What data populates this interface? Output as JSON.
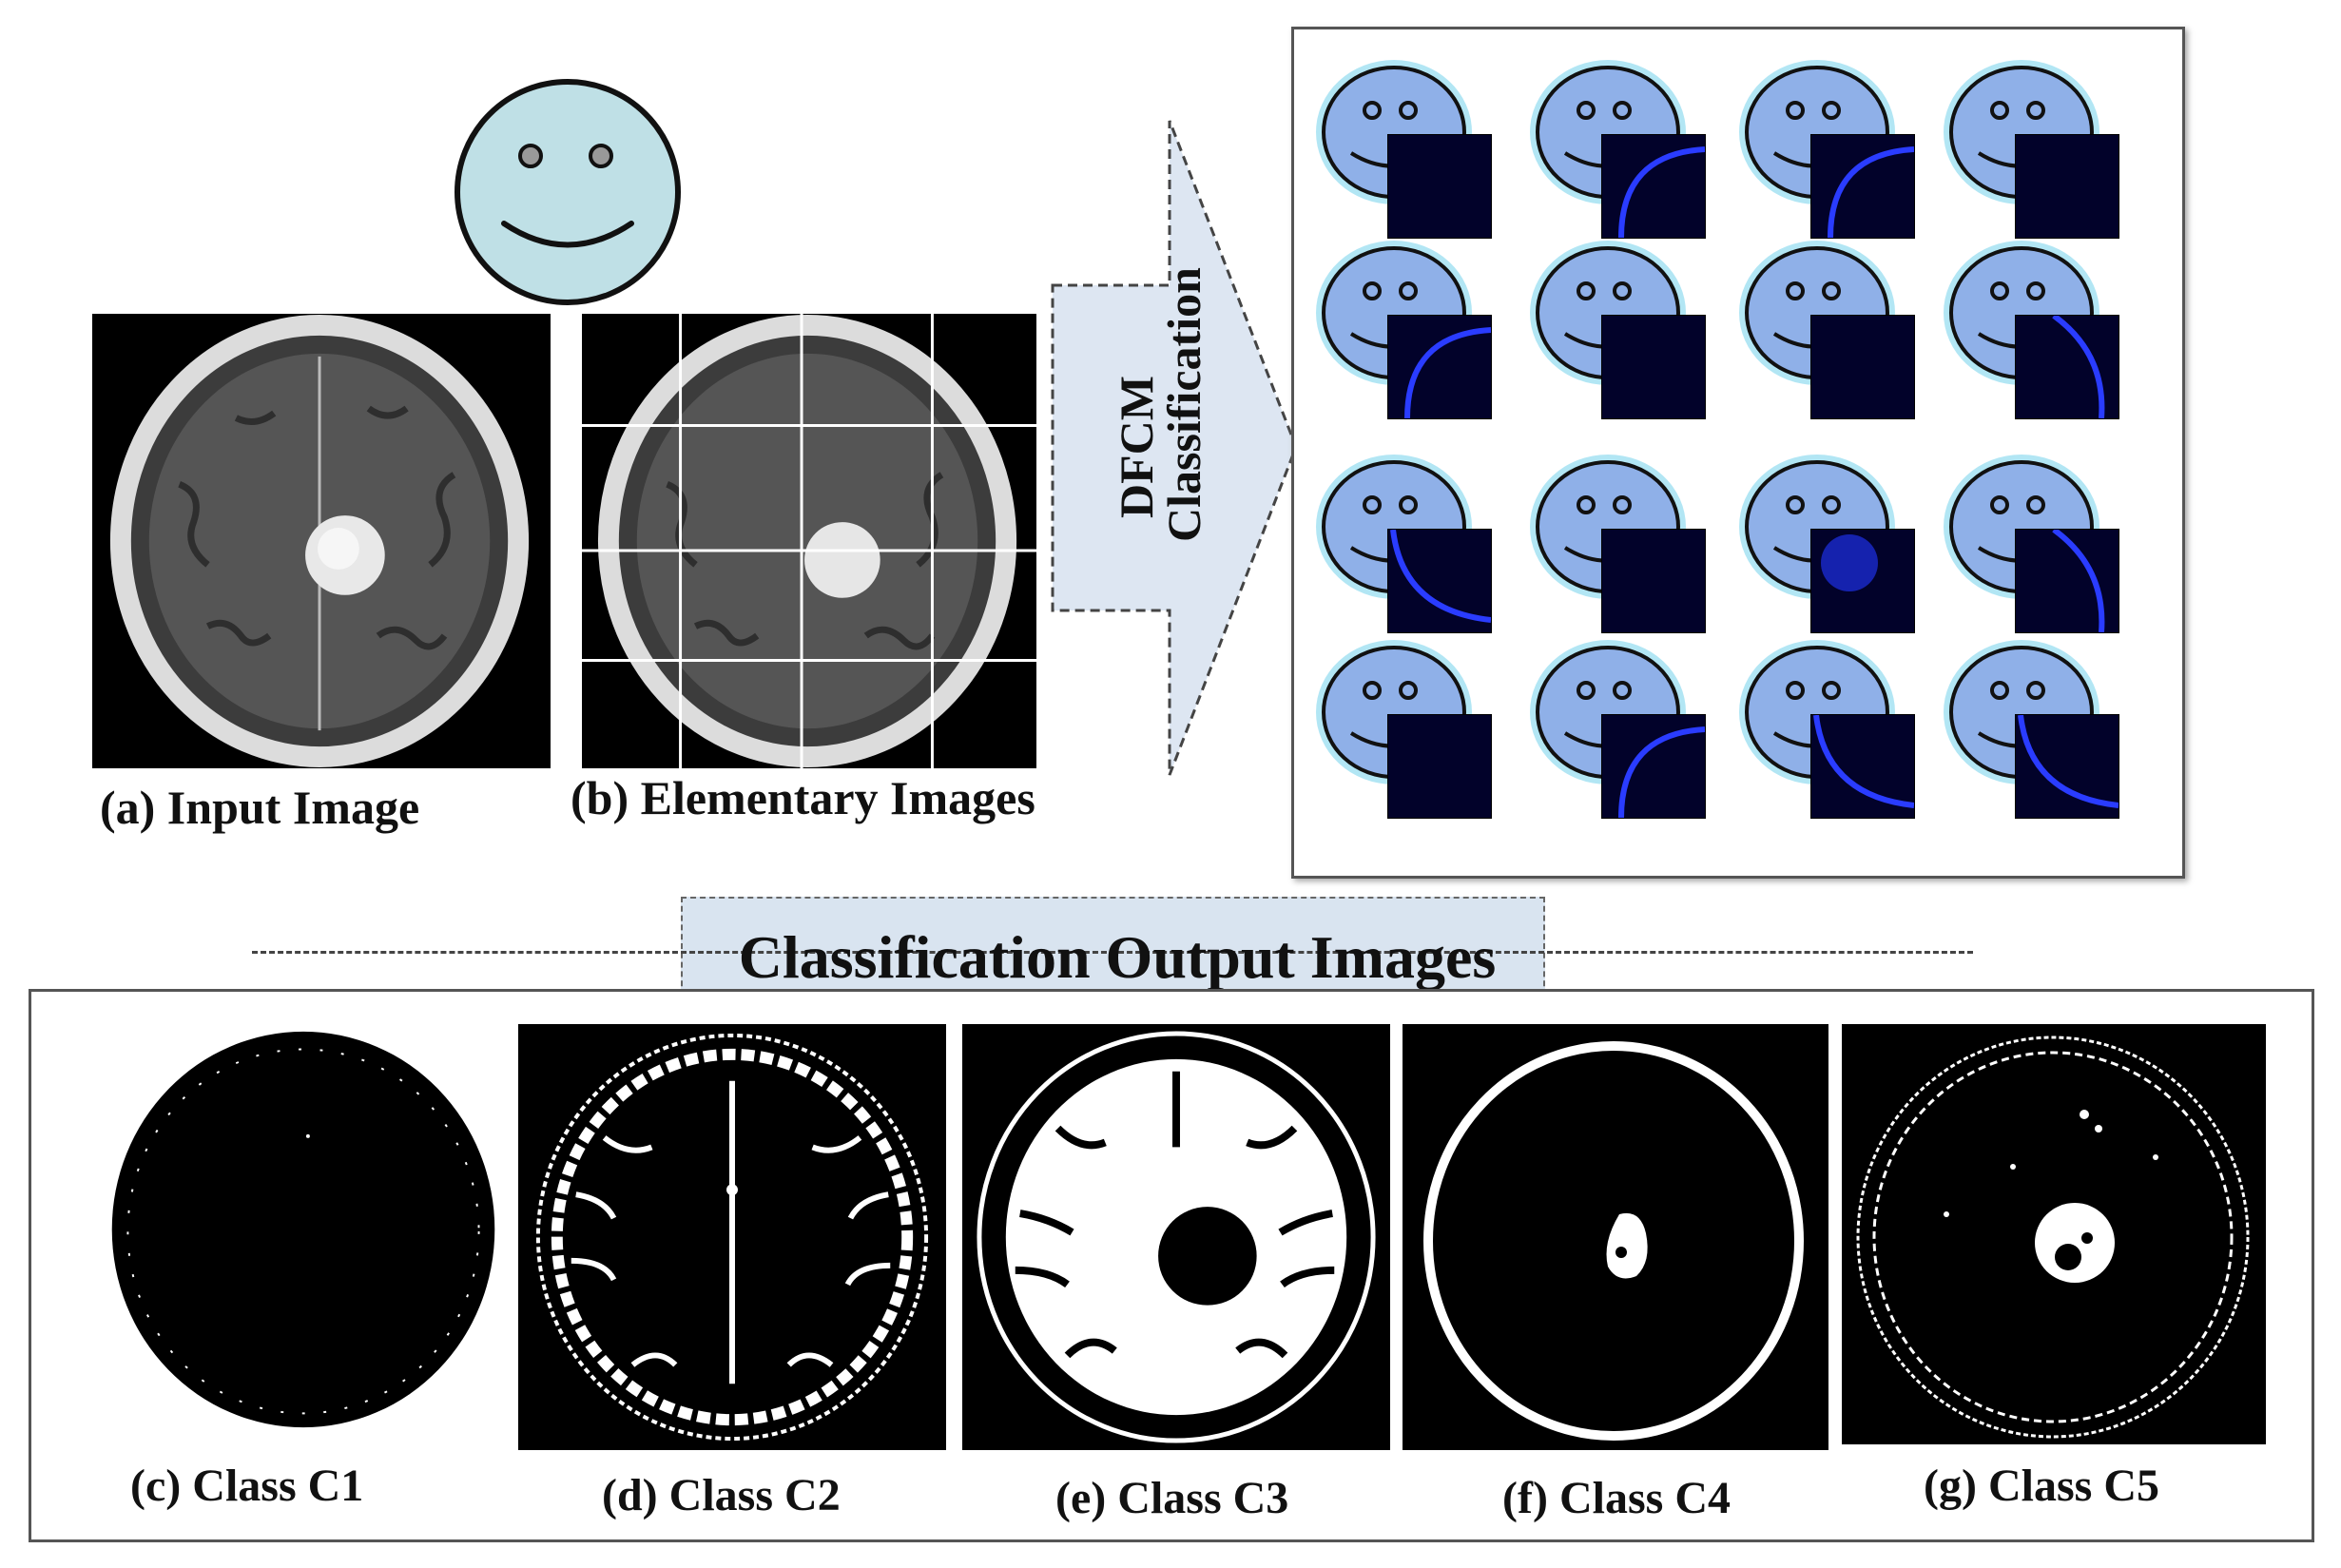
{
  "labels": {
    "input_image": "(a) Input Image",
    "elementary_images": "(b) Elementary Images",
    "dfcm_line1": "DFCM",
    "dfcm_line2": "Classification",
    "output_banner": "Classification Output Images"
  },
  "classes": [
    {
      "label": "(c) Class C1"
    },
    {
      "label": "(d) Class C2"
    },
    {
      "label": "(e) Class C3"
    },
    {
      "label": "(f) Class C4"
    },
    {
      "label": "(g) Class C5"
    }
  ],
  "colors": {
    "face_large": "#bfe0e6",
    "face_small": "#8fb0e8",
    "face_glow": "#7fd6ec",
    "arrow_fill": "#dde6f2",
    "banner_fill": "#d9e4f0",
    "patch_bg": "#02022a",
    "patch_arc": "#2a3cff"
  },
  "grid": {
    "rows": 4,
    "cols": 4
  }
}
